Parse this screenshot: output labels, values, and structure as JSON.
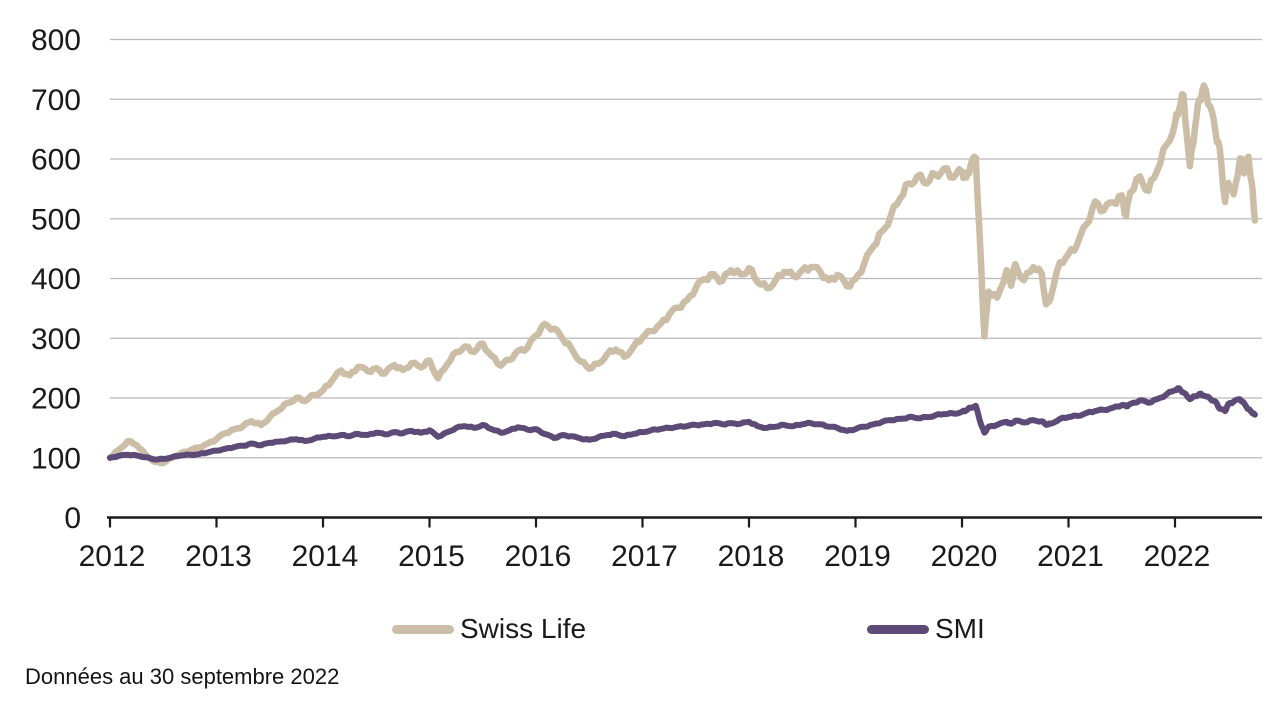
{
  "style": {
    "background": "#ffffff",
    "text_color": "#1a1a1a",
    "grid_color": "#b9b9b9",
    "axis_color": "#1a1a1a"
  },
  "footnote": "Données au 30 septembre 2022",
  "chart_data": {
    "type": "line",
    "title": "",
    "xlabel": "",
    "ylabel": "",
    "grid": "horizontal",
    "legend_position": "bottom",
    "y_axis": {
      "range": [
        0,
        800
      ],
      "ticks": [
        0,
        100,
        200,
        300,
        400,
        500,
        600,
        700,
        800
      ]
    },
    "x_axis": {
      "range": [
        2012,
        2022.83
      ],
      "ticks": [
        2012,
        2013,
        2014,
        2015,
        2016,
        2017,
        2018,
        2019,
        2020,
        2021,
        2022
      ]
    },
    "x": [
      2012.0,
      2012.08,
      2012.17,
      2012.25,
      2012.33,
      2012.42,
      2012.5,
      2012.58,
      2012.67,
      2012.75,
      2012.83,
      2012.92,
      2013.0,
      2013.08,
      2013.17,
      2013.25,
      2013.33,
      2013.42,
      2013.5,
      2013.58,
      2013.67,
      2013.75,
      2013.83,
      2013.92,
      2014.0,
      2014.08,
      2014.17,
      2014.25,
      2014.33,
      2014.42,
      2014.5,
      2014.58,
      2014.67,
      2014.75,
      2014.83,
      2014.92,
      2015.0,
      2015.08,
      2015.17,
      2015.25,
      2015.33,
      2015.42,
      2015.5,
      2015.58,
      2015.67,
      2015.75,
      2015.83,
      2015.92,
      2016.0,
      2016.08,
      2016.17,
      2016.25,
      2016.33,
      2016.42,
      2016.5,
      2016.58,
      2016.67,
      2016.75,
      2016.83,
      2016.92,
      2017.0,
      2017.08,
      2017.17,
      2017.25,
      2017.33,
      2017.42,
      2017.5,
      2017.58,
      2017.67,
      2017.75,
      2017.83,
      2017.92,
      2018.0,
      2018.08,
      2018.17,
      2018.25,
      2018.33,
      2018.42,
      2018.5,
      2018.58,
      2018.67,
      2018.75,
      2018.83,
      2018.92,
      2019.0,
      2019.08,
      2019.17,
      2019.25,
      2019.33,
      2019.42,
      2019.5,
      2019.58,
      2019.67,
      2019.75,
      2019.83,
      2019.92,
      2020.0,
      2020.04,
      2020.08,
      2020.13,
      2020.18,
      2020.21,
      2020.25,
      2020.33,
      2020.42,
      2020.46,
      2020.5,
      2020.58,
      2020.67,
      2020.75,
      2020.79,
      2020.83,
      2020.92,
      2021.0,
      2021.08,
      2021.17,
      2021.25,
      2021.33,
      2021.42,
      2021.5,
      2021.54,
      2021.58,
      2021.67,
      2021.75,
      2021.83,
      2021.92,
      2022.0,
      2022.04,
      2022.08,
      2022.14,
      2022.19,
      2022.23,
      2022.27,
      2022.33,
      2022.38,
      2022.42,
      2022.47,
      2022.5,
      2022.55,
      2022.61,
      2022.65,
      2022.69,
      2022.72,
      2022.75
    ],
    "series": [
      {
        "name": "Swiss Life",
        "color": "#cbbda6",
        "values": [
          100,
          113,
          128,
          121,
          106,
          93,
          91,
          100,
          108,
          112,
          117,
          124,
          131,
          141,
          148,
          153,
          161,
          155,
          168,
          179,
          192,
          200,
          195,
          205,
          213,
          228,
          246,
          238,
          252,
          245,
          250,
          241,
          255,
          247,
          258,
          251,
          263,
          233,
          257,
          277,
          286,
          277,
          291,
          271,
          254,
          264,
          279,
          284,
          305,
          324,
          316,
          299,
          284,
          261,
          249,
          257,
          274,
          281,
          269,
          287,
          301,
          312,
          324,
          339,
          351,
          364,
          384,
          399,
          407,
          396,
          414,
          407,
          417,
          394,
          384,
          397,
          411,
          404,
          414,
          419,
          411,
          397,
          406,
          387,
          399,
          424,
          454,
          479,
          504,
          534,
          559,
          571,
          559,
          574,
          584,
          569,
          579,
          569,
          589,
          602,
          420,
          303,
          378,
          368,
          414,
          388,
          424,
          397,
          419,
          407,
          357,
          366,
          427,
          441,
          456,
          491,
          529,
          514,
          527,
          539,
          504,
          544,
          571,
          547,
          579,
          624,
          659,
          684,
          707,
          588,
          655,
          700,
          723,
          688,
          645,
          618,
          528,
          560,
          541,
          601,
          576,
          604,
          561,
          497
        ]
      },
      {
        "name": "SMI",
        "color": "#5e4a76",
        "values": [
          100,
          103,
          105,
          104,
          101,
          97,
          98,
          101,
          104,
          105,
          106,
          109,
          112,
          115,
          118,
          120,
          124,
          121,
          125,
          127,
          129,
          131,
          128,
          132,
          135,
          136,
          138,
          136,
          140,
          138,
          142,
          139,
          143,
          141,
          145,
          142,
          146,
          135,
          143,
          150,
          153,
          150,
          155,
          148,
          142,
          146,
          151,
          147,
          148,
          140,
          133,
          138,
          136,
          132,
          130,
          134,
          138,
          140,
          136,
          140,
          143,
          146,
          148,
          150,
          152,
          153,
          155,
          156,
          158,
          156,
          158,
          157,
          160,
          153,
          150,
          152,
          155,
          153,
          156,
          158,
          156,
          152,
          150,
          145,
          148,
          152,
          156,
          160,
          163,
          165,
          168,
          166,
          168,
          171,
          173,
          174,
          177,
          179,
          184,
          187,
          155,
          142,
          152,
          155,
          160,
          157,
          162,
          159,
          163,
          161,
          155,
          157,
          165,
          168,
          170,
          175,
          178,
          180,
          184,
          188,
          186,
          190,
          196,
          192,
          198,
          206,
          213,
          216,
          209,
          198,
          203,
          207,
          204,
          199,
          194,
          182,
          178,
          190,
          194,
          198,
          191,
          181,
          176,
          172
        ]
      }
    ]
  }
}
